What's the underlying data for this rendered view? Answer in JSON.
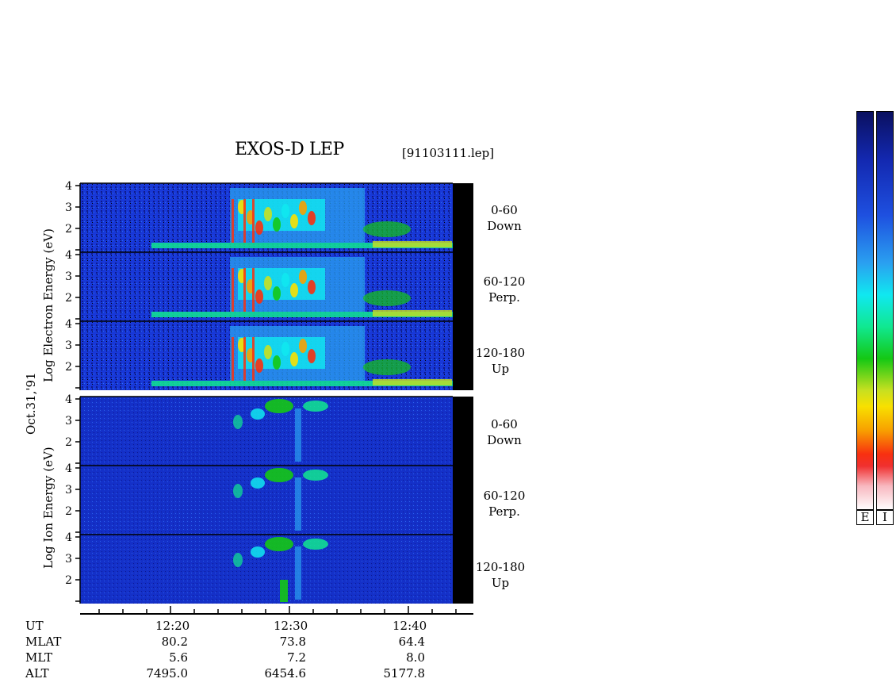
{
  "title": "EXOS-D LEP",
  "file_label": "[91103111.lep]",
  "y_labels": {
    "electron_section": "Log   Electron   Energy  (eV)",
    "ion_section": "Log   Ion   Energy  (eV)",
    "date": "Oct.31,'91"
  },
  "panels": [
    {
      "channel": "0-60",
      "direction": "Down"
    },
    {
      "channel": "60-120",
      "direction": "Perp."
    },
    {
      "channel": "120-180",
      "direction": "Up"
    },
    {
      "channel": "0-60",
      "direction": "Down"
    },
    {
      "channel": "60-120",
      "direction": "Perp."
    },
    {
      "channel": "120-180",
      "direction": "Up"
    }
  ],
  "time_axis": {
    "row_labels": [
      "UT",
      "MLAT",
      "MLT",
      "ALT"
    ],
    "columns": [
      {
        "UT": "12:20",
        "MLAT": "80.2",
        "MLT": "5.6",
        "ALT": "7495.0"
      },
      {
        "UT": "12:30",
        "MLAT": "73.8",
        "MLT": "7.2",
        "ALT": "6454.6"
      },
      {
        "UT": "12:40",
        "MLAT": "64.4",
        "MLT": "8.0",
        "ALT": "5177.8"
      }
    ]
  },
  "colorbars": [
    {
      "label": "E"
    },
    {
      "label": "I"
    }
  ],
  "chart_data": {
    "type": "heatmap",
    "title": "EXOS-D LEP",
    "x_axis": {
      "quantity": "UT",
      "range": [
        "12:13",
        "12:43"
      ],
      "major_ticks": [
        "12:20",
        "12:30",
        "12:40"
      ],
      "minor_tick_interval_min": 2
    },
    "y_axis": {
      "label": "Log Energy (eV)",
      "ticks": [
        1,
        2,
        3,
        4
      ],
      "range": [
        1,
        4
      ]
    },
    "panel_order": [
      "Electron 0-60 Down",
      "Electron 60-120 Perp.",
      "Electron 120-180 Up",
      "Ion 0-60 Down",
      "Ion 60-120 Perp.",
      "Ion 120-180 Up"
    ],
    "colormap": [
      "#0a1060",
      "#1328b0",
      "#1e50e0",
      "#2aa0f0",
      "#10e8f0",
      "#10e890",
      "#14c814",
      "#c8e020",
      "#f8e000",
      "#f8a000",
      "#f83010",
      "#f8b8c0",
      "#ffffff"
    ],
    "data_gap_color": "#000000"
  }
}
